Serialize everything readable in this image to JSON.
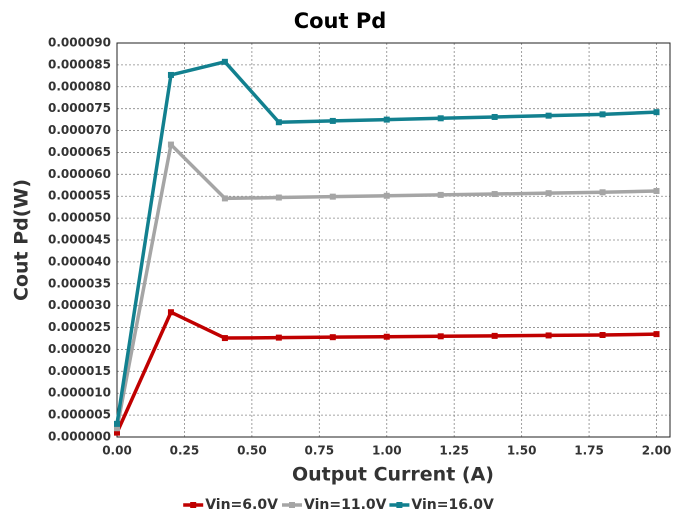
{
  "chart_data": {
    "type": "line",
    "title": "Cout Pd",
    "xlabel": "Output Current (A)",
    "ylabel": "Cout Pd(W)",
    "x": [
      0,
      0.2,
      0.4,
      0.6,
      0.8,
      1.0,
      1.2,
      1.4,
      1.6,
      1.8,
      2.0
    ],
    "series": [
      {
        "name": "Vin=6.0V",
        "color": "#c00000",
        "values": [
          1e-06,
          2.85e-05,
          2.26e-05,
          2.27e-05,
          2.28e-05,
          2.29e-05,
          2.3e-05,
          2.31e-05,
          2.32e-05,
          2.33e-05,
          2.35e-05
        ]
      },
      {
        "name": "Vin=11.0V",
        "color": "#a5a5a5",
        "values": [
          2e-06,
          6.68e-05,
          5.45e-05,
          5.47e-05,
          5.49e-05,
          5.51e-05,
          5.53e-05,
          5.55e-05,
          5.57e-05,
          5.59e-05,
          5.62e-05
        ]
      },
      {
        "name": "Vin=16.0V",
        "color": "#12808f",
        "values": [
          3e-06,
          8.27e-05,
          8.57e-05,
          7.19e-05,
          7.22e-05,
          7.25e-05,
          7.28e-05,
          7.31e-05,
          7.34e-05,
          7.37e-05,
          7.42e-05
        ]
      }
    ],
    "xlim": [
      0,
      2.05
    ],
    "ylim": [
      0,
      9e-05
    ],
    "xticks": [
      {
        "value": 0,
        "label": "0.00"
      },
      {
        "value": 0.25,
        "label": "0.25"
      },
      {
        "value": 0.5,
        "label": "0.50"
      },
      {
        "value": 0.75,
        "label": "0.75"
      },
      {
        "value": 1.0,
        "label": "1.00"
      },
      {
        "value": 1.25,
        "label": "1.25"
      },
      {
        "value": 1.5,
        "label": "1.50"
      },
      {
        "value": 1.75,
        "label": "1.75"
      },
      {
        "value": 2.0,
        "label": "2.00"
      }
    ],
    "yticks": [
      {
        "value": 0,
        "label": "0.000000"
      },
      {
        "value": 5e-06,
        "label": "0.000005"
      },
      {
        "value": 1e-05,
        "label": "0.000010"
      },
      {
        "value": 1.5e-05,
        "label": "0.000015"
      },
      {
        "value": 2e-05,
        "label": "0.000020"
      },
      {
        "value": 2.5e-05,
        "label": "0.000025"
      },
      {
        "value": 3e-05,
        "label": "0.000030"
      },
      {
        "value": 3.5e-05,
        "label": "0.000035"
      },
      {
        "value": 4e-05,
        "label": "0.000040"
      },
      {
        "value": 4.5e-05,
        "label": "0.000045"
      },
      {
        "value": 5e-05,
        "label": "0.000050"
      },
      {
        "value": 5.5e-05,
        "label": "0.000055"
      },
      {
        "value": 6e-05,
        "label": "0.000060"
      },
      {
        "value": 6.5e-05,
        "label": "0.000065"
      },
      {
        "value": 7e-05,
        "label": "0.000070"
      },
      {
        "value": 7.5e-05,
        "label": "0.000075"
      },
      {
        "value": 8e-05,
        "label": "0.000080"
      },
      {
        "value": 8.5e-05,
        "label": "0.000085"
      },
      {
        "value": 9e-05,
        "label": "0.000090"
      }
    ],
    "grid": true,
    "legend": "bottom"
  }
}
